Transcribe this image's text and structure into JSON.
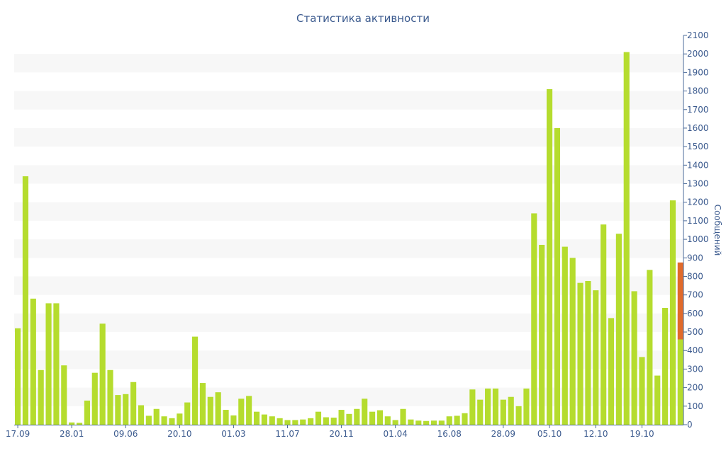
{
  "chart_data": {
    "type": "bar",
    "title": "Статистика активности",
    "ylabel": "Сообщений",
    "xlabel": "",
    "ylim": [
      0,
      2100
    ],
    "y_ticks": [
      0,
      100,
      200,
      300,
      400,
      500,
      600,
      700,
      800,
      900,
      1000,
      1100,
      1200,
      1300,
      1400,
      1500,
      1600,
      1700,
      1800,
      1900,
      2000,
      2100
    ],
    "y_axis_side": "right",
    "grid": "alternating horizontal bands",
    "x_tick_labels": [
      "17.09",
      "28.01",
      "09.06",
      "20.10",
      "01.03",
      "11.07",
      "20.11",
      "01.04",
      "16.08",
      "28.09",
      "05.10",
      "12.10",
      "19.10"
    ],
    "x_tick_positions": [
      0,
      7,
      14,
      21,
      28,
      35,
      42,
      49,
      56,
      63,
      69,
      75,
      81
    ],
    "bar_color": "#b5dc2e",
    "highlight_color": "#e06a2b",
    "values": [
      520,
      1340,
      680,
      295,
      655,
      655,
      320,
      12,
      10,
      130,
      280,
      545,
      295,
      160,
      165,
      230,
      105,
      48,
      85,
      45,
      35,
      60,
      120,
      475,
      225,
      150,
      175,
      80,
      50,
      140,
      155,
      70,
      55,
      45,
      35,
      25,
      25,
      28,
      35,
      70,
      40,
      38,
      80,
      58,
      85,
      140,
      70,
      78,
      45,
      25,
      85,
      28,
      22,
      20,
      22,
      22,
      45,
      48,
      62,
      190,
      135,
      195,
      195,
      135,
      150,
      100,
      195,
      1140,
      970,
      1810,
      1600,
      960,
      900,
      765,
      775,
      725,
      1080,
      575,
      1030,
      2010,
      720,
      365,
      835,
      265,
      630,
      1210,
      460
    ],
    "highlight": {
      "index": 86,
      "base": 460,
      "top": 875
    }
  },
  "colors": {
    "band": "#f7f7f7",
    "axis": "#4a6a9a",
    "text": "#3b5a8e"
  }
}
